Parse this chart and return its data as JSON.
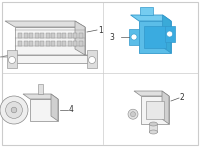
{
  "background_color": "#ffffff",
  "border_color": "#cccccc",
  "grid_line_color": "#cccccc",
  "line_color": "#888888",
  "edge_color": "#666666",
  "highlight_fill": "#5bbde8",
  "highlight_edge": "#3399cc",
  "normal_fill": "#f2f2f2",
  "normal_edge": "#888888",
  "label_color": "#333333",
  "font_size": 5.5,
  "components": [
    {
      "id": 1,
      "label": "1",
      "highlighted": false,
      "cell": [
        0,
        1
      ]
    },
    {
      "id": 2,
      "label": "2",
      "highlighted": false,
      "cell": [
        1,
        0
      ]
    },
    {
      "id": 3,
      "label": "3",
      "highlighted": true,
      "cell": [
        1,
        1
      ]
    },
    {
      "id": 4,
      "label": "4",
      "highlighted": false,
      "cell": [
        0,
        0
      ]
    }
  ]
}
